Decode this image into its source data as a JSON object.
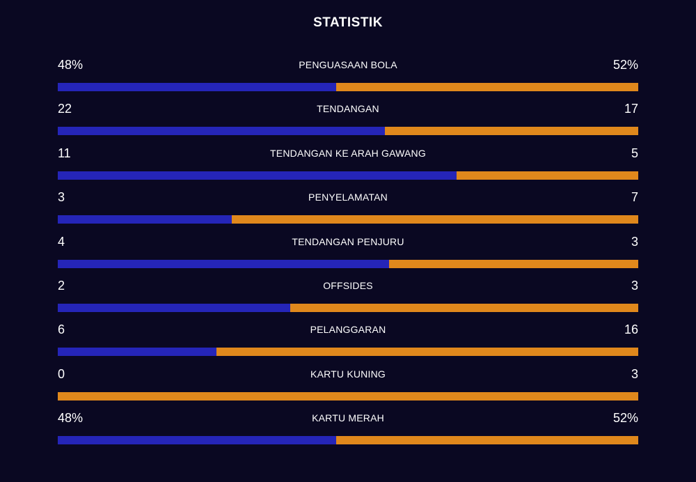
{
  "title": "STATISTIK",
  "colors": {
    "background": "#0a0822",
    "home": "#2525b8",
    "away": "#e0881c"
  },
  "stats": [
    {
      "label": "PENGUASAAN BOLA",
      "left": "48%",
      "right": "52%",
      "left_share": 0.48
    },
    {
      "label": "TENDANGAN",
      "left": "22",
      "right": "17",
      "left_share": 0.564
    },
    {
      "label": "TENDANGAN KE ARAH GAWANG",
      "left": "11",
      "right": "5",
      "left_share": 0.6875
    },
    {
      "label": "PENYELAMATAN",
      "left": "3",
      "right": "7",
      "left_share": 0.3
    },
    {
      "label": "TENDANGAN PENJURU",
      "left": "4",
      "right": "3",
      "left_share": 0.571
    },
    {
      "label": "OFFSIDES",
      "left": "2",
      "right": "3",
      "left_share": 0.4
    },
    {
      "label": "PELANGGARAN",
      "left": "6",
      "right": "16",
      "left_share": 0.273
    },
    {
      "label": "KARTU KUNING",
      "left": "0",
      "right": "3",
      "left_share": 0.0
    },
    {
      "label": "KARTU MERAH",
      "left": "48%",
      "right": "52%",
      "left_share": 0.48
    }
  ]
}
